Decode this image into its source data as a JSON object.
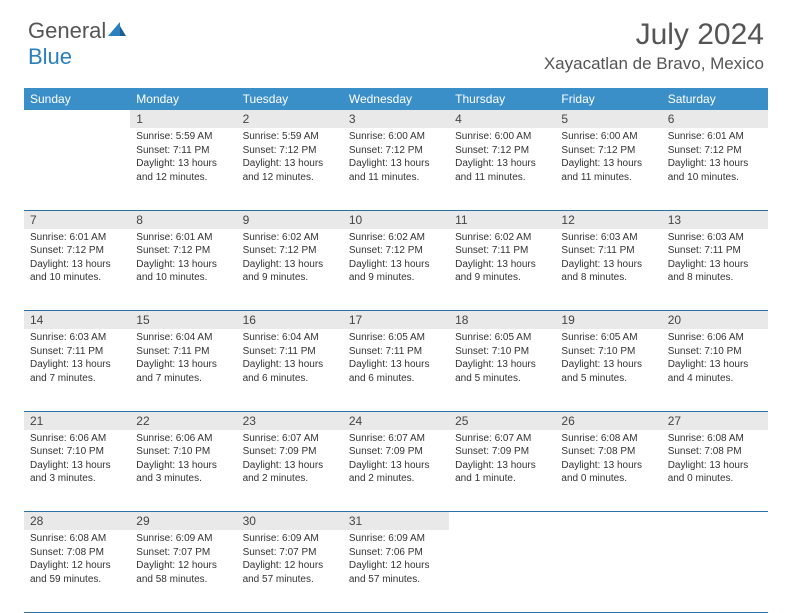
{
  "brand": {
    "part1": "General",
    "part2": "Blue"
  },
  "title": "July 2024",
  "location": "Xayacatlan de Bravo, Mexico",
  "colors": {
    "header_bg": "#3b8fc9",
    "header_text": "#ffffff",
    "daynum_bg": "#e9e9e9",
    "row_divider": "#2a6fa5",
    "text": "#333333",
    "title_text": "#555555"
  },
  "day_headers": [
    "Sunday",
    "Monday",
    "Tuesday",
    "Wednesday",
    "Thursday",
    "Friday",
    "Saturday"
  ],
  "weeks": [
    [
      null,
      {
        "n": "1",
        "sr": "5:59 AM",
        "ss": "7:11 PM",
        "dl": "13 hours and 12 minutes."
      },
      {
        "n": "2",
        "sr": "5:59 AM",
        "ss": "7:12 PM",
        "dl": "13 hours and 12 minutes."
      },
      {
        "n": "3",
        "sr": "6:00 AM",
        "ss": "7:12 PM",
        "dl": "13 hours and 11 minutes."
      },
      {
        "n": "4",
        "sr": "6:00 AM",
        "ss": "7:12 PM",
        "dl": "13 hours and 11 minutes."
      },
      {
        "n": "5",
        "sr": "6:00 AM",
        "ss": "7:12 PM",
        "dl": "13 hours and 11 minutes."
      },
      {
        "n": "6",
        "sr": "6:01 AM",
        "ss": "7:12 PM",
        "dl": "13 hours and 10 minutes."
      }
    ],
    [
      {
        "n": "7",
        "sr": "6:01 AM",
        "ss": "7:12 PM",
        "dl": "13 hours and 10 minutes."
      },
      {
        "n": "8",
        "sr": "6:01 AM",
        "ss": "7:12 PM",
        "dl": "13 hours and 10 minutes."
      },
      {
        "n": "9",
        "sr": "6:02 AM",
        "ss": "7:12 PM",
        "dl": "13 hours and 9 minutes."
      },
      {
        "n": "10",
        "sr": "6:02 AM",
        "ss": "7:12 PM",
        "dl": "13 hours and 9 minutes."
      },
      {
        "n": "11",
        "sr": "6:02 AM",
        "ss": "7:11 PM",
        "dl": "13 hours and 9 minutes."
      },
      {
        "n": "12",
        "sr": "6:03 AM",
        "ss": "7:11 PM",
        "dl": "13 hours and 8 minutes."
      },
      {
        "n": "13",
        "sr": "6:03 AM",
        "ss": "7:11 PM",
        "dl": "13 hours and 8 minutes."
      }
    ],
    [
      {
        "n": "14",
        "sr": "6:03 AM",
        "ss": "7:11 PM",
        "dl": "13 hours and 7 minutes."
      },
      {
        "n": "15",
        "sr": "6:04 AM",
        "ss": "7:11 PM",
        "dl": "13 hours and 7 minutes."
      },
      {
        "n": "16",
        "sr": "6:04 AM",
        "ss": "7:11 PM",
        "dl": "13 hours and 6 minutes."
      },
      {
        "n": "17",
        "sr": "6:05 AM",
        "ss": "7:11 PM",
        "dl": "13 hours and 6 minutes."
      },
      {
        "n": "18",
        "sr": "6:05 AM",
        "ss": "7:10 PM",
        "dl": "13 hours and 5 minutes."
      },
      {
        "n": "19",
        "sr": "6:05 AM",
        "ss": "7:10 PM",
        "dl": "13 hours and 5 minutes."
      },
      {
        "n": "20",
        "sr": "6:06 AM",
        "ss": "7:10 PM",
        "dl": "13 hours and 4 minutes."
      }
    ],
    [
      {
        "n": "21",
        "sr": "6:06 AM",
        "ss": "7:10 PM",
        "dl": "13 hours and 3 minutes."
      },
      {
        "n": "22",
        "sr": "6:06 AM",
        "ss": "7:10 PM",
        "dl": "13 hours and 3 minutes."
      },
      {
        "n": "23",
        "sr": "6:07 AM",
        "ss": "7:09 PM",
        "dl": "13 hours and 2 minutes."
      },
      {
        "n": "24",
        "sr": "6:07 AM",
        "ss": "7:09 PM",
        "dl": "13 hours and 2 minutes."
      },
      {
        "n": "25",
        "sr": "6:07 AM",
        "ss": "7:09 PM",
        "dl": "13 hours and 1 minute."
      },
      {
        "n": "26",
        "sr": "6:08 AM",
        "ss": "7:08 PM",
        "dl": "13 hours and 0 minutes."
      },
      {
        "n": "27",
        "sr": "6:08 AM",
        "ss": "7:08 PM",
        "dl": "13 hours and 0 minutes."
      }
    ],
    [
      {
        "n": "28",
        "sr": "6:08 AM",
        "ss": "7:08 PM",
        "dl": "12 hours and 59 minutes."
      },
      {
        "n": "29",
        "sr": "6:09 AM",
        "ss": "7:07 PM",
        "dl": "12 hours and 58 minutes."
      },
      {
        "n": "30",
        "sr": "6:09 AM",
        "ss": "7:07 PM",
        "dl": "12 hours and 57 minutes."
      },
      {
        "n": "31",
        "sr": "6:09 AM",
        "ss": "7:06 PM",
        "dl": "12 hours and 57 minutes."
      },
      null,
      null,
      null
    ]
  ],
  "labels": {
    "sunrise": "Sunrise:",
    "sunset": "Sunset:",
    "daylight": "Daylight:"
  }
}
